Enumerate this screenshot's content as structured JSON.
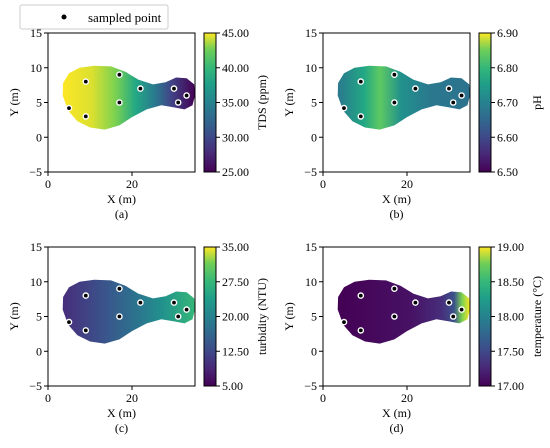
{
  "legend": {
    "label": "sampled point",
    "placement": "top-left"
  },
  "chart_data": [
    {
      "type": "heatmap",
      "panel_label": "(a)",
      "xlabel": "X (m)",
      "ylabel": "Y (m)",
      "xlim": [
        0,
        35
      ],
      "ylim": [
        -5,
        15
      ],
      "xticks": [
        "0",
        "20"
      ],
      "yticks": [
        "−5",
        "0",
        "5",
        "10",
        "15"
      ],
      "colorbar": {
        "label": "TDS (ppm)",
        "range": [
          25,
          45
        ],
        "ticks": [
          "25.00",
          "30.00",
          "35.00",
          "40.00",
          "45.00"
        ],
        "colormap": "viridis"
      },
      "field": "high on the left side, low (dark) in the center-right and on the right tail",
      "points": [
        [
          5,
          4.2
        ],
        [
          9,
          8
        ],
        [
          9,
          3
        ],
        [
          17,
          9
        ],
        [
          17,
          5
        ],
        [
          22,
          7
        ],
        [
          30,
          7
        ],
        [
          31,
          5
        ],
        [
          33,
          6
        ]
      ]
    },
    {
      "type": "heatmap",
      "panel_label": "(b)",
      "xlabel": "X (m)",
      "ylabel": "Y (m)",
      "xlim": [
        0,
        35
      ],
      "ylim": [
        -5,
        15
      ],
      "xticks": [
        "0",
        "20"
      ],
      "yticks": [
        "−5",
        "0",
        "5",
        "10",
        "15"
      ],
      "colorbar": {
        "label": "pH",
        "range": [
          6.5,
          6.9
        ],
        "ticks": [
          "6.50",
          "6.60",
          "6.70",
          "6.80",
          "6.90"
        ],
        "colormap": "viridis"
      },
      "field": "mostly mid-range with a lighter green region left of center",
      "points": [
        [
          5,
          4.2
        ],
        [
          9,
          8
        ],
        [
          9,
          3
        ],
        [
          17,
          9
        ],
        [
          17,
          5
        ],
        [
          22,
          7
        ],
        [
          30,
          7
        ],
        [
          31,
          5
        ],
        [
          33,
          6
        ]
      ]
    },
    {
      "type": "heatmap",
      "panel_label": "(c)",
      "xlabel": "X (m)",
      "ylabel": "Y (m)",
      "xlim": [
        0,
        35
      ],
      "ylim": [
        -5,
        15
      ],
      "xticks": [
        "0",
        "20"
      ],
      "yticks": [
        "−5",
        "0",
        "5",
        "10",
        "15"
      ],
      "colorbar": {
        "label": "turbidity (NTU)",
        "range": [
          5,
          35
        ],
        "ticks": [
          "5.00",
          "12.50",
          "20.00",
          "27.50",
          "35.00"
        ],
        "colormap": "viridis"
      },
      "field": "low on the left, rising to high (green) toward the right",
      "points": [
        [
          5,
          4.2
        ],
        [
          9,
          8
        ],
        [
          9,
          3
        ],
        [
          17,
          9
        ],
        [
          17,
          5
        ],
        [
          22,
          7
        ],
        [
          30,
          7
        ],
        [
          31,
          5
        ],
        [
          33,
          6
        ]
      ]
    },
    {
      "type": "heatmap",
      "panel_label": "(d)",
      "xlabel": "X (m)",
      "ylabel": "Y (m)",
      "xlim": [
        0,
        35
      ],
      "ylim": [
        -5,
        15
      ],
      "xticks": [
        "0",
        "20"
      ],
      "yticks": [
        "−5",
        "0",
        "5",
        "10",
        "15"
      ],
      "colorbar": {
        "label": "temperature (°C)",
        "range": [
          17,
          19
        ],
        "ticks": [
          "17.00",
          "17.50",
          "18.00",
          "18.50",
          "19.00"
        ],
        "colormap": "viridis"
      },
      "field": "low (dark purple) across most of the body, very high (yellow) at the right tip",
      "points": [
        [
          5,
          4.2
        ],
        [
          9,
          8
        ],
        [
          9,
          3
        ],
        [
          17,
          9
        ],
        [
          17,
          5
        ],
        [
          22,
          7
        ],
        [
          30,
          7
        ],
        [
          31,
          5
        ],
        [
          33,
          6
        ]
      ]
    }
  ]
}
